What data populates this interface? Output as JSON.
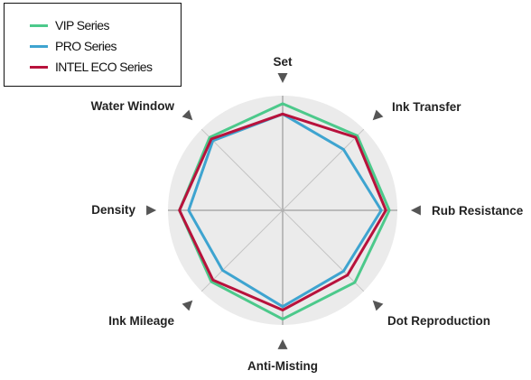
{
  "chart_data": {
    "type": "radar",
    "categories": [
      "Set",
      "Ink Transfer",
      "Rub Resistance",
      "Dot Reproduction",
      "Anti-Misting",
      "Ink Mileage",
      "Density",
      "Water Window"
    ],
    "range": [
      0,
      10
    ],
    "grid": true,
    "legend_position": "top-left",
    "series": [
      {
        "name": "VIP Series",
        "color": "#4cc98b",
        "values": [
          9.3,
          9.2,
          9.3,
          8.9,
          9.5,
          8.8,
          9.0,
          9.0
        ]
      },
      {
        "name": "PRO Series",
        "color": "#3ea4d0",
        "values": [
          8.4,
          7.5,
          8.6,
          7.5,
          8.4,
          7.4,
          8.2,
          8.6
        ]
      },
      {
        "name": "INTEL ECO Series",
        "color": "#b8123c",
        "values": [
          8.4,
          9.0,
          9.0,
          8.0,
          8.7,
          8.6,
          9.0,
          8.8
        ]
      }
    ]
  }
}
